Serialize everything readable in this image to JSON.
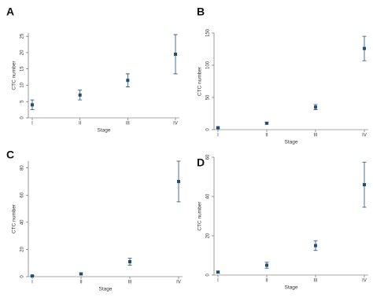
{
  "chart_data": [
    {
      "type": "scatter",
      "panel_label": "A",
      "xlabel": "Stage",
      "ylabel": "CTC number",
      "categories": [
        "I",
        "II",
        "III",
        "IV"
      ],
      "values": [
        4,
        7,
        11.5,
        19.5
      ],
      "errors": [
        1.5,
        1.5,
        2,
        6
      ],
      "color": "#1f4e79",
      "ylim": [
        0,
        26
      ],
      "yticks": [
        0,
        5,
        10,
        15,
        20,
        25
      ]
    },
    {
      "type": "scatter",
      "panel_label": "B",
      "xlabel": "Stage",
      "ylabel": "CTC number",
      "categories": [
        "I",
        "II",
        "III",
        "IV"
      ],
      "values": [
        3,
        10,
        35,
        126
      ],
      "errors": [
        1,
        1.5,
        4,
        19
      ],
      "color": "#1f4e79",
      "ylim": [
        0,
        150
      ],
      "yticks": [
        0,
        50,
        100,
        150
      ]
    },
    {
      "type": "scatter",
      "panel_label": "C",
      "xlabel": "Stage",
      "ylabel": "CTC number",
      "categories": [
        "I",
        "II",
        "III",
        "IV"
      ],
      "values": [
        0.5,
        2,
        11,
        70
      ],
      "errors": [
        0.3,
        0.6,
        2.5,
        15
      ],
      "color": "#1f4e79",
      "ylim": [
        0,
        85
      ],
      "yticks": [
        0,
        20,
        40,
        60,
        80
      ]
    },
    {
      "type": "scatter",
      "panel_label": "D",
      "xlabel": "Stage",
      "ylabel": "CTC number",
      "categories": [
        "I",
        "II",
        "III",
        "IV"
      ],
      "values": [
        1.5,
        5,
        15,
        46
      ],
      "errors": [
        0.5,
        1.5,
        2.5,
        11.5
      ],
      "color": "#1f4e79",
      "ylim": [
        0,
        60
      ],
      "yticks": [
        0,
        20,
        40,
        60
      ]
    }
  ]
}
